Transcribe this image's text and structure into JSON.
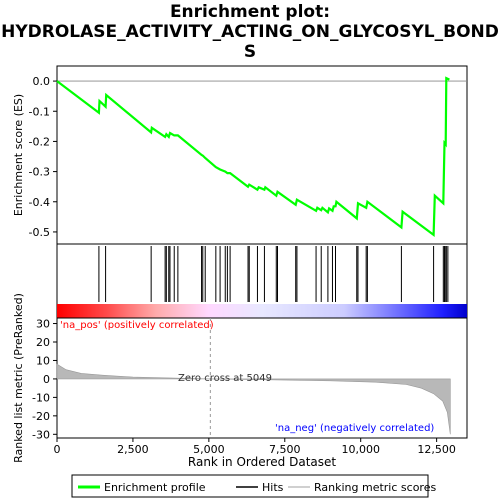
{
  "chart_data": {
    "type": "line",
    "title_lines": [
      "Enrichment plot:",
      "HYDROLASE_ACTIVITY_ACTING_ON_GLYCOSYL_BOND",
      "S"
    ],
    "top_panel": {
      "ylabel": "Enrichment score (ES)",
      "ylim": [
        -0.54,
        0.05
      ],
      "yticks": [
        "0.0",
        "-0.1",
        "-0.2",
        "-0.3",
        "-0.4",
        "-0.5"
      ],
      "ytick_values": [
        0.0,
        -0.1,
        -0.2,
        -0.3,
        -0.4,
        -0.5
      ],
      "series": [
        {
          "name": "Enrichment profile",
          "color": "#00ff00",
          "points": [
            [
              0,
              0.0
            ],
            [
              1380,
              -0.105
            ],
            [
              1400,
              -0.066
            ],
            [
              1600,
              -0.085
            ],
            [
              1620,
              -0.046
            ],
            [
              3100,
              -0.17
            ],
            [
              3120,
              -0.155
            ],
            [
              3560,
              -0.185
            ],
            [
              3600,
              -0.176
            ],
            [
              3680,
              -0.185
            ],
            [
              3720,
              -0.172
            ],
            [
              3860,
              -0.18
            ],
            [
              3980,
              -0.18
            ],
            [
              4760,
              -0.245
            ],
            [
              4800,
              -0.247
            ],
            [
              4880,
              -0.255
            ],
            [
              5230,
              -0.285
            ],
            [
              5370,
              -0.293
            ],
            [
              5540,
              -0.3
            ],
            [
              5610,
              -0.305
            ],
            [
              5700,
              -0.305
            ],
            [
              6290,
              -0.35
            ],
            [
              6330,
              -0.343
            ],
            [
              6600,
              -0.36
            ],
            [
              6640,
              -0.352
            ],
            [
              6830,
              -0.36
            ],
            [
              6860,
              -0.352
            ],
            [
              7220,
              -0.38
            ],
            [
              7260,
              -0.367
            ],
            [
              7860,
              -0.41
            ],
            [
              7900,
              -0.393
            ],
            [
              8530,
              -0.43
            ],
            [
              8570,
              -0.42
            ],
            [
              8700,
              -0.428
            ],
            [
              8740,
              -0.42
            ],
            [
              8920,
              -0.435
            ],
            [
              8960,
              -0.422
            ],
            [
              9070,
              -0.43
            ],
            [
              9110,
              -0.415
            ],
            [
              9170,
              -0.415
            ],
            [
              9200,
              -0.4
            ],
            [
              9870,
              -0.455
            ],
            [
              9910,
              -0.405
            ],
            [
              10180,
              -0.42
            ],
            [
              10220,
              -0.4
            ],
            [
              11340,
              -0.485
            ],
            [
              11380,
              -0.433
            ],
            [
              12400,
              -0.51
            ],
            [
              12440,
              -0.38
            ],
            [
              12720,
              -0.405
            ],
            [
              12760,
              -0.205
            ],
            [
              12800,
              -0.21
            ],
            [
              12820,
              0.01
            ],
            [
              12920,
              0.005
            ]
          ]
        }
      ]
    },
    "hits": [
      1380,
      1600,
      3100,
      3560,
      3600,
      3680,
      3720,
      3860,
      3980,
      4760,
      4800,
      4880,
      5230,
      5370,
      5540,
      5610,
      5700,
      6290,
      6330,
      6600,
      6830,
      7220,
      7260,
      7860,
      7900,
      8530,
      8700,
      8920,
      9070,
      9170,
      9870,
      9910,
      10180,
      10220,
      11340,
      12400,
      12720,
      12760,
      12800,
      12820,
      12870
    ],
    "bottom_panel": {
      "ylabel": "Ranked list metric (PreRanked)",
      "ylim": [
        -32,
        33
      ],
      "yticks": [
        "30",
        "20",
        "10",
        "0",
        "-10",
        "-20",
        "-30"
      ],
      "ytick_values": [
        30,
        20,
        10,
        0,
        -10,
        -20,
        -30
      ],
      "metric_points": [
        [
          0,
          8
        ],
        [
          300,
          5
        ],
        [
          800,
          3
        ],
        [
          1500,
          2
        ],
        [
          2500,
          1
        ],
        [
          3500,
          0.6
        ],
        [
          5049,
          0
        ],
        [
          7000,
          -0.5
        ],
        [
          9000,
          -1
        ],
        [
          10500,
          -1.8
        ],
        [
          11500,
          -3
        ],
        [
          12000,
          -5
        ],
        [
          12400,
          -8
        ],
        [
          12700,
          -12
        ],
        [
          12850,
          -18
        ],
        [
          12950,
          -30
        ]
      ],
      "zero_cross_label": "Zero cross at 5049",
      "zero_cross": 5049,
      "pos_label": "'na_pos' (positively correlated)",
      "neg_label": "'na_neg' (negatively correlated)",
      "pos_color": "#ff0000",
      "neg_color": "#0000ff"
    },
    "xlabel": "Rank in Ordered Dataset",
    "xlim": [
      0,
      13500
    ],
    "xticks": [
      "0",
      "2,500",
      "5,000",
      "7,500",
      "10,000",
      "12,500"
    ],
    "xtick_values": [
      0,
      2500,
      5000,
      7500,
      10000,
      12500
    ],
    "legend": {
      "placement": "bottom",
      "entries": [
        {
          "label": "Enrichment profile",
          "color": "#00ff00"
        },
        {
          "label": "Hits",
          "color": "#000000"
        },
        {
          "label": "Ranking metric scores",
          "color": "#c0c0c0"
        }
      ]
    }
  }
}
